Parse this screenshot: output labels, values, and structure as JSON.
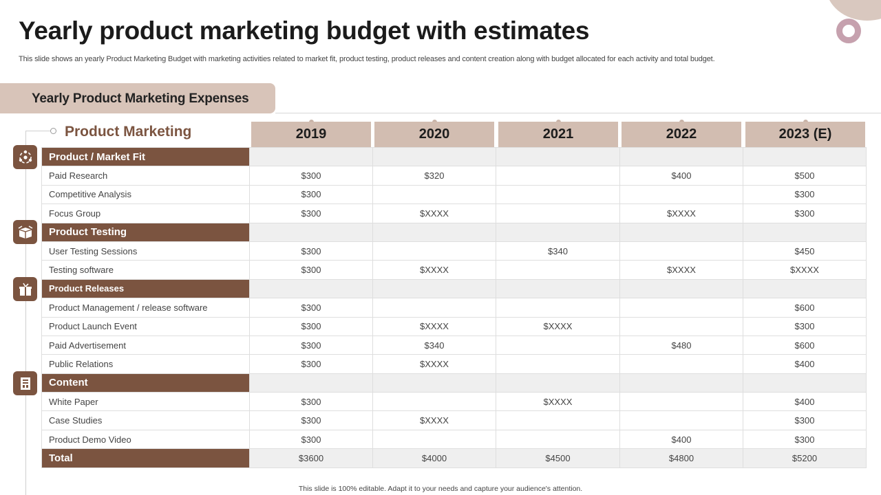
{
  "header": {
    "title": "Yearly product marketing budget with estimates",
    "subtitle": "This slide shows an yearly Product Marketing Budget with marketing activities related to market fit,  product testing, product releases and content creation along with budget allocated for each activity  and total budget."
  },
  "section": {
    "tab_label": "Yearly Product Marketing Expenses",
    "group_label": "Product Marketing"
  },
  "years": [
    "2019",
    "2020",
    "2021",
    "2022",
    "2023 (E)"
  ],
  "icons": [
    "market-fit-icon",
    "testing-box-icon",
    "release-gift-icon",
    "content-doc-icon"
  ],
  "rows": [
    {
      "type": "category",
      "label": "Product / Market Fit",
      "values": [
        "",
        "",
        "",
        "",
        ""
      ]
    },
    {
      "type": "item",
      "label": "Paid Research",
      "values": [
        "$300",
        "$320",
        "",
        "$400",
        "$500"
      ]
    },
    {
      "type": "item",
      "label": "Competitive  Analysis",
      "values": [
        "$300",
        "",
        "",
        "",
        "$300"
      ]
    },
    {
      "type": "item",
      "label": "Focus Group",
      "values": [
        "$300",
        "$XXXX",
        "",
        "$XXXX",
        "$300"
      ]
    },
    {
      "type": "category",
      "label": "Product Testing",
      "values": [
        "",
        "",
        "",
        "",
        ""
      ]
    },
    {
      "type": "item",
      "label": "User Testing Sessions",
      "values": [
        "$300",
        "",
        "$340",
        "",
        "$450"
      ]
    },
    {
      "type": "item",
      "label": "Testing software",
      "values": [
        "$300",
        "$XXXX",
        "",
        "$XXXX",
        "$XXXX"
      ]
    },
    {
      "type": "category",
      "label": "Product Releases",
      "values": [
        "",
        "",
        "",
        "",
        ""
      ]
    },
    {
      "type": "item",
      "label": "Product Management  / release software",
      "values": [
        "$300",
        "",
        "",
        "",
        "$600"
      ]
    },
    {
      "type": "item",
      "label": "Product Launch Event",
      "values": [
        "$300",
        "$XXXX",
        "$XXXX",
        "",
        "$300"
      ]
    },
    {
      "type": "item",
      "label": "Paid Advertisement",
      "values": [
        "$300",
        "$340",
        "",
        "$480",
        "$600"
      ]
    },
    {
      "type": "item",
      "label": "Public Relations",
      "values": [
        "$300",
        "$XXXX",
        "",
        "",
        "$400"
      ]
    },
    {
      "type": "category",
      "label": "Content",
      "values": [
        "",
        "",
        "",
        "",
        ""
      ]
    },
    {
      "type": "item",
      "label": "White Paper",
      "values": [
        "$300",
        "",
        "$XXXX",
        "",
        "$400"
      ]
    },
    {
      "type": "item",
      "label": "Case Studies",
      "values": [
        "$300",
        "$XXXX",
        "",
        "",
        "$300"
      ]
    },
    {
      "type": "item",
      "label": "Product Demo Video",
      "values": [
        "$300",
        "",
        "",
        "$400",
        "$300"
      ]
    },
    {
      "type": "total",
      "label": "Total",
      "values": [
        "$3600",
        "$4000",
        "$4500",
        "$4800",
        "$5200"
      ]
    }
  ],
  "footer": {
    "note": "This slide is 100% editable.  Adapt it to your needs and capture your audience's attention."
  },
  "colors": {
    "category_bg": "#7b5440",
    "header_bg": "#d2bdb1",
    "tab_bg": "#d8c4b9",
    "accent_ring": "#c6a1ae"
  }
}
